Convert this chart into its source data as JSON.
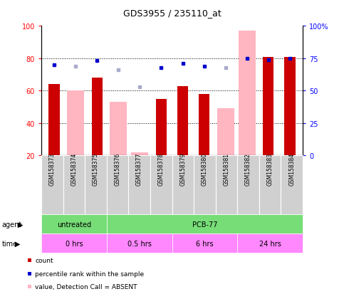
{
  "title": "GDS3955 / 235110_at",
  "samples": [
    "GSM158373",
    "GSM158374",
    "GSM158375",
    "GSM158376",
    "GSM158377",
    "GSM158378",
    "GSM158379",
    "GSM158380",
    "GSM158381",
    "GSM158382",
    "GSM158383",
    "GSM158384"
  ],
  "count_values": [
    64,
    null,
    68,
    null,
    null,
    55,
    63,
    58,
    null,
    null,
    81,
    81
  ],
  "pink_bar_values": [
    null,
    60,
    null,
    53,
    22,
    null,
    null,
    null,
    49,
    97,
    null,
    null
  ],
  "rank_values": [
    70,
    null,
    73,
    null,
    null,
    68,
    71,
    69,
    null,
    75,
    74,
    75
  ],
  "rank_absent": [
    null,
    69,
    null,
    66,
    53,
    null,
    null,
    null,
    68,
    null,
    null,
    null
  ],
  "ylim_left": [
    20,
    100
  ],
  "ylim_right": [
    0,
    100
  ],
  "yticks_left": [
    20,
    40,
    60,
    80,
    100
  ],
  "ytick_labels_right": [
    "0",
    "25",
    "50",
    "75",
    "100%"
  ],
  "ytick_vals_right": [
    0,
    25,
    50,
    75,
    100
  ],
  "grid_values": [
    80,
    60,
    40
  ],
  "count_color": "#CC0000",
  "rank_color": "#0000CC",
  "pink_color": "#FFB6C1",
  "light_blue_color": "#AAAACC",
  "bg_color": "#FFFFFF",
  "bar_width": 0.5,
  "label_box_color": "#C0C0C0",
  "green_color": "#77DD77",
  "pink_time_color": "#FF88FF"
}
